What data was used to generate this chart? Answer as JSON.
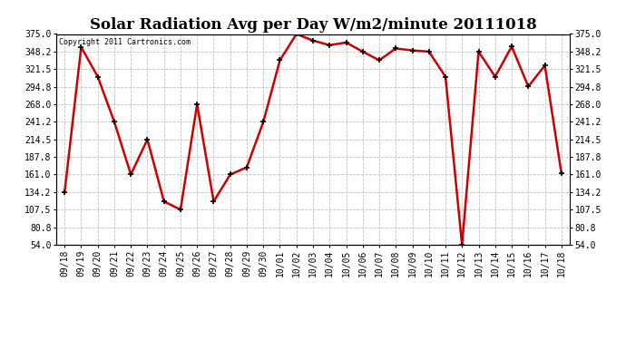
{
  "title": "Solar Radiation Avg per Day W/m2/minute 20111018",
  "copyright": "Copyright 2011 Cartronics.com",
  "labels": [
    "09/18",
    "09/19",
    "09/20",
    "09/21",
    "09/22",
    "09/23",
    "09/24",
    "09/25",
    "09/26",
    "09/27",
    "09/28",
    "09/29",
    "09/30",
    "10/01",
    "10/02",
    "10/03",
    "10/04",
    "10/05",
    "10/06",
    "10/07",
    "10/08",
    "10/09",
    "10/10",
    "10/11",
    "10/12",
    "10/13",
    "10/14",
    "10/15",
    "10/16",
    "10/17",
    "10/18"
  ],
  "values": [
    134.2,
    355.0,
    310.0,
    241.2,
    161.0,
    214.5,
    120.0,
    107.5,
    268.0,
    120.0,
    161.0,
    172.0,
    241.2,
    335.0,
    375.0,
    365.0,
    358.0,
    362.0,
    348.2,
    335.0,
    353.0,
    350.0,
    348.2,
    310.0,
    54.0,
    348.2,
    310.0,
    356.0,
    295.0,
    327.0,
    163.0
  ],
  "ylim": [
    54.0,
    375.0
  ],
  "yticks": [
    54.0,
    80.8,
    107.5,
    134.2,
    161.0,
    187.8,
    214.5,
    241.2,
    268.0,
    294.8,
    321.5,
    348.2,
    375.0
  ],
  "line_color": "#cc0000",
  "marker": "s",
  "marker_color": "#000000",
  "marker_size": 3,
  "grid_color": "#c0c0c0",
  "bg_color": "#ffffff",
  "title_fontsize": 12,
  "tick_fontsize": 7,
  "copyright_fontsize": 6
}
